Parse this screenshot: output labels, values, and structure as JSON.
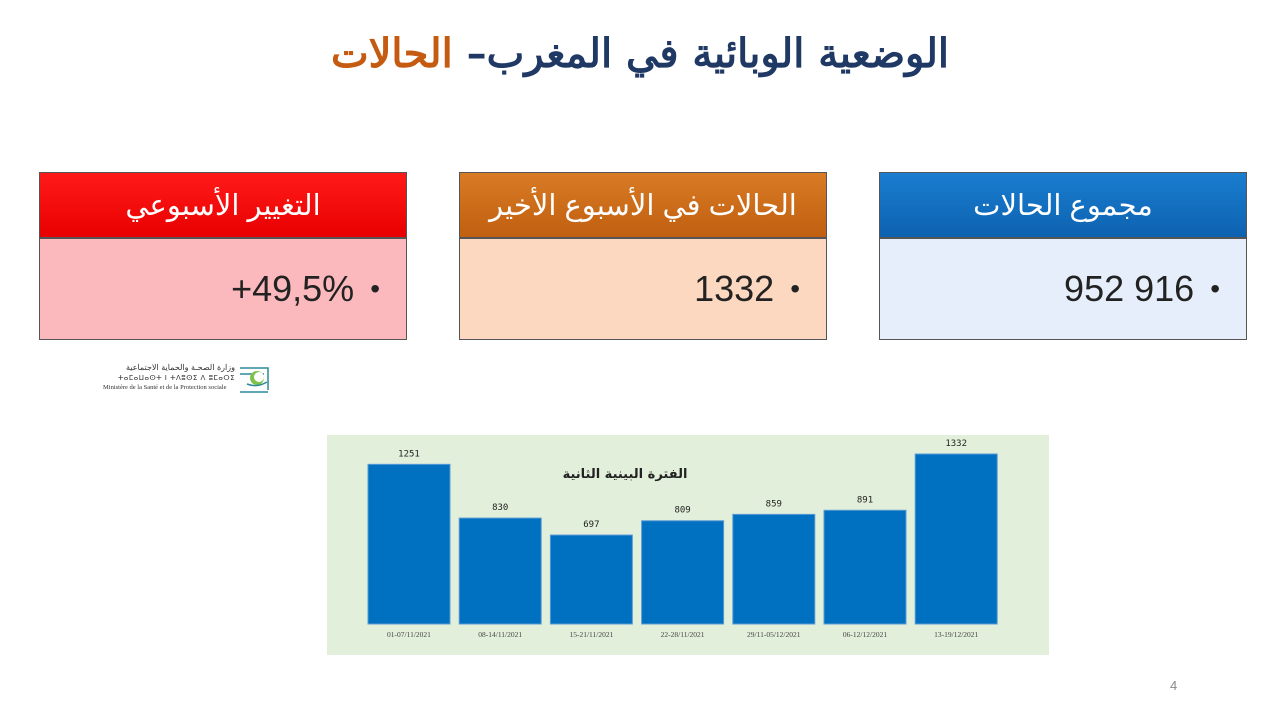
{
  "title": {
    "main": "الوضعية الوبائية في المغرب– ",
    "accent": "الحالات"
  },
  "cards": {
    "total": {
      "label": "مجموع الحالات",
      "value": "952 916"
    },
    "last_week": {
      "label": "الحالات في الأسبوع الأخير",
      "value": "1332"
    },
    "weekly_change": {
      "label": "التغيير الأسبوعي",
      "value": "+49,5%"
    }
  },
  "bullet": "•",
  "logo": {
    "arabic": "وزارة الصحـة والحماية الاجتماعية",
    "tifinagh": "ⵜⴰⵎⴰⵡⴰⵙⵜ ⵏ ⵜⴷⵓⵙⵉ ⴷ ⵓⵎⴰⵔⵉ",
    "french": "Ministère de la Santé et de la Protection sociale"
  },
  "chart_data": {
    "type": "bar",
    "title": "الفترة البينية الثانية",
    "categories": [
      "01-07/11/2021",
      "08-14/11/2021",
      "15-21/11/2021",
      "22-28/11/2021",
      "29/11-05/12/2021",
      "06-12/12/2021",
      "13-19/12/2021"
    ],
    "values": [
      1251,
      830,
      697,
      809,
      859,
      891,
      1332
    ],
    "ylim": [
      0,
      1332
    ],
    "bar_color": "#0070c0",
    "background": "#e2efda",
    "grid": false,
    "legend": "none"
  },
  "page_number": "4"
}
